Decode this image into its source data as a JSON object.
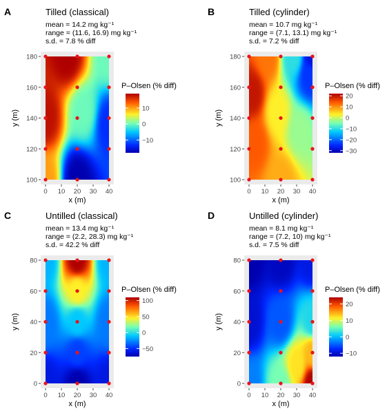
{
  "figure": {
    "legend_title": "P–Olsen (% diff)"
  },
  "chart_data": [
    {
      "type": "heatmap",
      "letter": "A",
      "title": "Tilled (classical)",
      "stats": [
        "mean = 14.2 mg kg⁻¹",
        "range = (11.6, 16.9) mg kg⁻¹",
        "s.d. = 7.8 % diff"
      ],
      "xlabel": "x (m)",
      "ylabel": "y (m)",
      "xlim": [
        0,
        40
      ],
      "ylim": [
        100,
        180
      ],
      "xticks": [
        "0",
        "10",
        "20",
        "30",
        "40"
      ],
      "yticks": [
        "100",
        "120",
        "140",
        "160",
        "180"
      ],
      "color_range": [
        -18,
        19
      ],
      "colorbar_ticks": [
        "10",
        "0",
        "−10"
      ],
      "colorbar_tick_values": [
        10,
        0,
        -10
      ],
      "field": [
        [
          0,
          0,
          10
        ],
        [
          0.5,
          0,
          -18
        ],
        [
          0,
          0.5,
          18
        ],
        [
          0.6,
          0.55,
          0
        ],
        [
          1,
          0.45,
          -13
        ],
        [
          0.35,
          1,
          19
        ],
        [
          1,
          1,
          0
        ]
      ],
      "sample_points": [
        [
          0,
          100
        ],
        [
          20,
          100
        ],
        [
          40,
          100
        ],
        [
          0,
          120
        ],
        [
          20,
          120
        ],
        [
          40,
          120
        ],
        [
          0,
          140
        ],
        [
          20,
          140
        ],
        [
          40,
          140
        ],
        [
          0,
          160
        ],
        [
          20,
          160
        ],
        [
          40,
          160
        ],
        [
          0,
          180
        ],
        [
          20,
          180
        ],
        [
          40,
          180
        ]
      ]
    },
    {
      "type": "heatmap",
      "letter": "B",
      "title": "Tilled (cylinder)",
      "stats": [
        "mean = 10.7 mg kg⁻¹",
        "range = (7.1, 13.1) mg kg⁻¹",
        "s.d. = 7.2 % diff"
      ],
      "xlabel": "x (m)",
      "ylabel": "y (m)",
      "xlim": [
        0,
        40
      ],
      "ylim": [
        100,
        180
      ],
      "xticks": [
        "0",
        "10",
        "20",
        "30",
        "40"
      ],
      "yticks": [
        "100",
        "120",
        "140",
        "160",
        "180"
      ],
      "color_range": [
        -32,
        22
      ],
      "colorbar_ticks": [
        "20",
        "10",
        "0",
        "−10",
        "−20",
        "−30"
      ],
      "colorbar_tick_values": [
        20,
        10,
        0,
        -10,
        -20,
        -30
      ],
      "field": [
        [
          0.05,
          0.7,
          20
        ],
        [
          0.1,
          0.3,
          14
        ],
        [
          0.5,
          0,
          8
        ],
        [
          0.45,
          0.55,
          3
        ],
        [
          0.8,
          0.4,
          -3
        ],
        [
          0.95,
          0.85,
          -24
        ],
        [
          1,
          1,
          -28
        ],
        [
          0.7,
          1,
          -10
        ],
        [
          0.3,
          1,
          12
        ]
      ],
      "sample_points": [
        [
          0,
          100
        ],
        [
          20,
          100
        ],
        [
          40,
          100
        ],
        [
          0,
          120
        ],
        [
          20,
          120
        ],
        [
          40,
          120
        ],
        [
          0,
          140
        ],
        [
          20,
          140
        ],
        [
          40,
          140
        ],
        [
          0,
          160
        ],
        [
          20,
          160
        ],
        [
          40,
          160
        ],
        [
          0,
          180
        ],
        [
          20,
          180
        ],
        [
          40,
          180
        ]
      ]
    },
    {
      "type": "heatmap",
      "letter": "C",
      "title": "Untilled (classical)",
      "stats": [
        "mean = 13.4 mg kg⁻¹",
        "range = (2.2, 28.3) mg kg⁻¹",
        "s.d. = 42.2 % diff"
      ],
      "xlabel": "x (m)",
      "ylabel": "y (m)",
      "xlim": [
        0,
        40
      ],
      "ylim": [
        0,
        80
      ],
      "xticks": [
        "0",
        "10",
        "20",
        "30",
        "40"
      ],
      "yticks": [
        "0",
        "20",
        "40",
        "60",
        "80"
      ],
      "color_range": [
        -75,
        110
      ],
      "colorbar_ticks": [
        "100",
        "50",
        "0",
        "−50"
      ],
      "colorbar_tick_values": [
        100,
        50,
        0,
        -50
      ],
      "field": [
        [
          0.5,
          1,
          110
        ],
        [
          0.5,
          0.75,
          45
        ],
        [
          0,
          1,
          -15
        ],
        [
          1,
          1,
          -15
        ],
        [
          0,
          0.5,
          -30
        ],
        [
          1,
          0.5,
          -30
        ],
        [
          0.5,
          0.5,
          -10
        ],
        [
          0.5,
          0.25,
          -45
        ],
        [
          0,
          0,
          -60
        ],
        [
          1,
          0,
          -60
        ],
        [
          0.5,
          0,
          -75
        ]
      ],
      "sample_points": [
        [
          0,
          0
        ],
        [
          20,
          0
        ],
        [
          40,
          0
        ],
        [
          0,
          20
        ],
        [
          20,
          20
        ],
        [
          40,
          20
        ],
        [
          0,
          40
        ],
        [
          20,
          40
        ],
        [
          40,
          40
        ],
        [
          0,
          60
        ],
        [
          20,
          60
        ],
        [
          40,
          60
        ],
        [
          0,
          80
        ],
        [
          20,
          80
        ],
        [
          40,
          80
        ]
      ]
    },
    {
      "type": "heatmap",
      "letter": "D",
      "title": "Untilled (cylinder)",
      "stats": [
        "mean = 8.1 mg kg⁻¹",
        "range = (7.2, 10) mg kg⁻¹",
        "s.d. = 7.5 % diff"
      ],
      "xlabel": "x (m)",
      "ylabel": "y (m)",
      "xlim": [
        0,
        40
      ],
      "ylim": [
        0,
        80
      ],
      "xticks": [
        "0",
        "10",
        "20",
        "30",
        "40"
      ],
      "yticks": [
        "0",
        "20",
        "40",
        "60",
        "80"
      ],
      "color_range": [
        -12,
        24
      ],
      "colorbar_ticks": [
        "20",
        "10",
        "0",
        "−10"
      ],
      "colorbar_tick_values": [
        20,
        10,
        0,
        -10
      ],
      "field": [
        [
          0,
          1,
          -12
        ],
        [
          0.5,
          1,
          -11
        ],
        [
          1,
          1,
          -9
        ],
        [
          0,
          0.5,
          -10
        ],
        [
          0.5,
          0.5,
          -5
        ],
        [
          1,
          0.5,
          2
        ],
        [
          0,
          0,
          -3
        ],
        [
          0.5,
          0,
          6
        ],
        [
          0.75,
          0.15,
          12
        ],
        [
          1,
          0,
          24
        ],
        [
          1,
          0.25,
          14
        ]
      ],
      "sample_points": [
        [
          0,
          0
        ],
        [
          20,
          0
        ],
        [
          40,
          0
        ],
        [
          0,
          20
        ],
        [
          20,
          20
        ],
        [
          40,
          20
        ],
        [
          0,
          40
        ],
        [
          20,
          40
        ],
        [
          40,
          40
        ],
        [
          0,
          60
        ],
        [
          20,
          60
        ],
        [
          40,
          60
        ],
        [
          0,
          80
        ],
        [
          20,
          80
        ],
        [
          40,
          80
        ]
      ]
    }
  ]
}
